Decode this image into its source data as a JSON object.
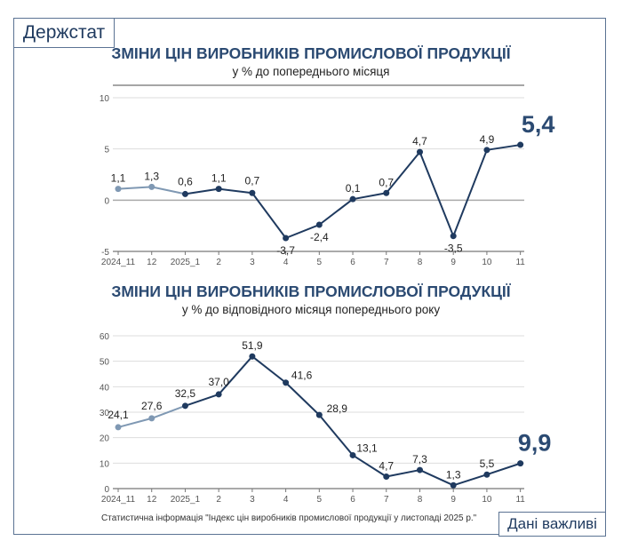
{
  "header": {
    "logo": "Держстат",
    "badge": "Дані важливі"
  },
  "footer": {
    "source": "Статистична інформація \"Індекс цін виробників промислової продукції у листопаді 2025 р.\""
  },
  "colors": {
    "frame": "#5b7393",
    "title": "#2b4a72",
    "line": "#1f3a5f",
    "previous_year": "#7f98b3"
  },
  "chart_data": [
    {
      "type": "line",
      "title": "ЗМІНИ ЦІН ВИРОБНИКІВ ПРОМИСЛОВОЇ ПРОДУКЦІЇ",
      "subtitle": "у % до попереднього місяця",
      "categories": [
        "2024_11",
        "12",
        "2025_1",
        "2",
        "3",
        "4",
        "5",
        "6",
        "7",
        "8",
        "9",
        "10",
        "11"
      ],
      "values": [
        1.1,
        1.3,
        0.6,
        1.1,
        0.7,
        -3.7,
        -2.4,
        0.1,
        0.7,
        4.7,
        -3.5,
        4.9,
        5.4
      ],
      "labels": [
        "1,1",
        "1,3",
        "0,6",
        "1,1",
        "0,7",
        "-3,7",
        "-2,4",
        "0,1",
        "0,7",
        "4,7",
        "-3,5",
        "4,9",
        "5,4"
      ],
      "yticks": [
        "10",
        "5",
        "0",
        "-5"
      ],
      "ylim": [
        -5,
        10
      ],
      "grid": true,
      "highlight_last": true
    },
    {
      "type": "line",
      "title": "ЗМІНИ ЦІН ВИРОБНИКІВ ПРОМИСЛОВОЇ ПРОДУКЦІЇ",
      "subtitle": "у % до відповідного місяця попереднього року",
      "categories": [
        "2024_11",
        "12",
        "2025_1",
        "2",
        "3",
        "4",
        "5",
        "6",
        "7",
        "8",
        "9",
        "10",
        "11"
      ],
      "values": [
        24.1,
        27.6,
        32.5,
        37.0,
        51.9,
        41.6,
        28.9,
        13.1,
        4.7,
        7.3,
        1.3,
        5.5,
        9.9
      ],
      "labels": [
        "24,1",
        "27,6",
        "32,5",
        "37,0",
        "51,9",
        "41,6",
        "28,9",
        "13,1",
        "4,7",
        "7,3",
        "1,3",
        "5,5",
        "9,9"
      ],
      "yticks": [
        "60",
        "50",
        "40",
        "30",
        "20",
        "10",
        "0"
      ],
      "ylim": [
        0,
        60
      ],
      "grid": true,
      "highlight_last": true
    }
  ]
}
